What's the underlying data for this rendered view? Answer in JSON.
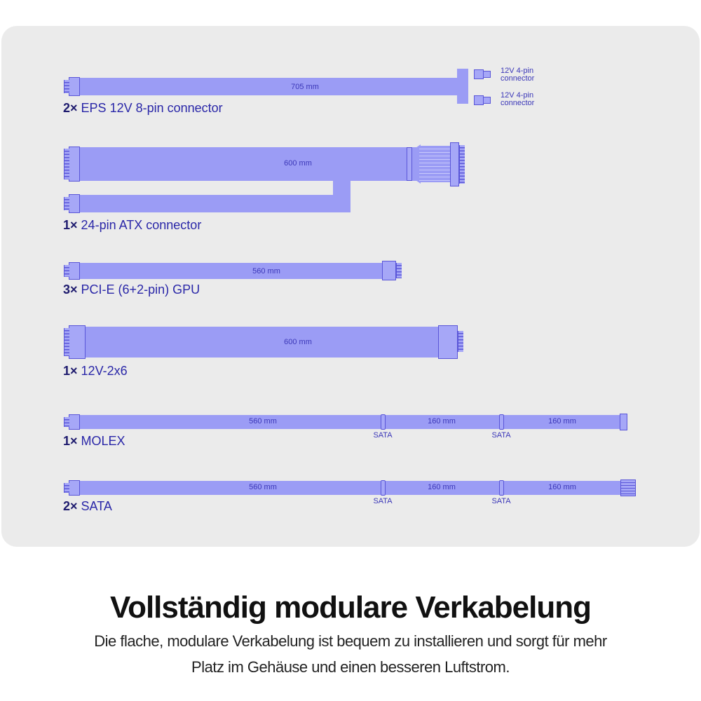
{
  "cables": [
    {
      "count": "2×",
      "name": "EPS 12V 8-pin connector",
      "length": "705 mm",
      "branches": [
        "12V 4-pin connector",
        "12V 4-pin connector"
      ]
    },
    {
      "count": "1×",
      "name": "24-pin ATX connector",
      "length": "600 mm"
    },
    {
      "count": "3×",
      "name": "PCI-E (6+2-pin) GPU",
      "length": "560 mm"
    },
    {
      "count": "1×",
      "name": "12V-2x6",
      "length": "600 mm"
    },
    {
      "count": "1×",
      "name": "MOLEX",
      "lengths": [
        "560 mm",
        "160 mm",
        "160 mm"
      ],
      "taps": [
        "SATA",
        "SATA"
      ]
    },
    {
      "count": "2×",
      "name": "SATA",
      "lengths": [
        "560 mm",
        "160 mm",
        "160 mm"
      ],
      "taps": [
        "SATA",
        "SATA"
      ]
    }
  ],
  "heading": "Vollständig modulare Verkabelung",
  "description": [
    "Die flache, modulare Verkabelung ist bequem zu installieren und sorgt für mehr",
    "Platz im Gehäuse und einen besseren Luftstrom."
  ],
  "colors": {
    "cable": "#9b9cf5",
    "outline": "#5a56d8",
    "text": "#1e1b6e"
  }
}
